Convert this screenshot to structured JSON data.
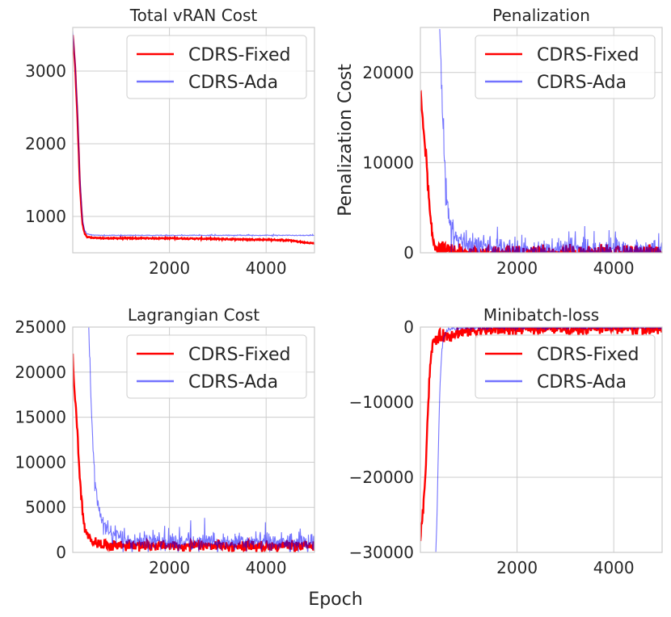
{
  "figure": {
    "xlabel": "Epoch"
  },
  "colors": {
    "fixed": "#ff0000",
    "ada": "#0000ff",
    "grid": "#cccccc",
    "text": "#262626"
  },
  "chart_data": [
    {
      "type": "line",
      "title": "Total vRAN Cost",
      "xlabel": "",
      "ylabel": "",
      "xlim": [
        0,
        5000
      ],
      "ylim": [
        500,
        3600
      ],
      "xticks": [
        2000,
        4000
      ],
      "xtick_labels": [
        "2000",
        "4000"
      ],
      "yticks": [
        1000,
        2000,
        3000
      ],
      "ytick_labels": [
        "1000",
        "2000",
        "3000"
      ],
      "legend_position": "top-right",
      "series": [
        {
          "name": "CDRS-Fixed",
          "key": "fixed",
          "x": [
            0,
            50,
            100,
            150,
            200,
            250,
            300,
            400,
            600,
            1000,
            2000,
            3000,
            4000,
            4500,
            4800,
            5000
          ],
          "y": [
            3500,
            3050,
            2300,
            1400,
            900,
            760,
            720,
            705,
            700,
            700,
            700,
            690,
            680,
            670,
            640,
            630
          ],
          "noise": 8
        },
        {
          "name": "CDRS-Ada",
          "key": "ada",
          "x": [
            0,
            50,
            100,
            150,
            200,
            250,
            300,
            400,
            600,
            1000,
            2000,
            3000,
            4000,
            5000
          ],
          "y": [
            3550,
            3100,
            2400,
            1500,
            950,
            800,
            760,
            745,
            740,
            740,
            740,
            740,
            740,
            740
          ],
          "noise": 4
        }
      ]
    },
    {
      "type": "line",
      "title": "Penalization",
      "xlabel": "",
      "ylabel": "Penalization Cost",
      "xlim": [
        0,
        5000
      ],
      "ylim": [
        0,
        25000
      ],
      "xticks": [
        2000,
        4000
      ],
      "xtick_labels": [
        "2000",
        "4000"
      ],
      "yticks": [
        0,
        10000,
        20000
      ],
      "ytick_labels": [
        "0",
        "10000",
        "20000"
      ],
      "legend_position": "top-right",
      "series": [
        {
          "name": "CDRS-Fixed",
          "key": "fixed",
          "x": [
            0,
            50,
            100,
            150,
            200,
            250,
            300,
            350,
            400,
            500,
            600,
            800,
            1000,
            2000,
            3000,
            4000,
            5000
          ],
          "y": [
            18000,
            14500,
            12000,
            8000,
            4000,
            1500,
            800,
            600,
            500,
            200,
            100,
            50,
            30,
            20,
            20,
            20,
            20
          ],
          "noise": 700
        },
        {
          "name": "CDRS-Ada",
          "key": "ada",
          "x": [
            400,
            430,
            460,
            500,
            550,
            600,
            700,
            800,
            1000,
            1200,
            1500,
            2000,
            3000,
            4000,
            5000
          ],
          "y": [
            25000,
            20000,
            15000,
            10000,
            6000,
            3500,
            2000,
            1500,
            1000,
            700,
            500,
            400,
            350,
            300,
            300
          ],
          "noise": 900
        }
      ]
    },
    {
      "type": "line",
      "title": "Lagrangian Cost",
      "xlabel": "",
      "ylabel": "",
      "xlim": [
        0,
        5000
      ],
      "ylim": [
        0,
        25000
      ],
      "xticks": [
        2000,
        4000
      ],
      "xtick_labels": [
        "2000",
        "4000"
      ],
      "yticks": [
        0,
        5000,
        10000,
        15000,
        20000,
        25000
      ],
      "ytick_labels": [
        "0",
        "5000",
        "10000",
        "15000",
        "20000",
        "25000"
      ],
      "legend_position": "top-right",
      "series": [
        {
          "name": "CDRS-Fixed",
          "key": "fixed",
          "x": [
            0,
            50,
            100,
            150,
            200,
            250,
            300,
            400,
            500,
            600,
            1000,
            2000,
            3000,
            4000,
            5000
          ],
          "y": [
            21500,
            17000,
            13000,
            8000,
            4500,
            2500,
            1700,
            1300,
            1100,
            900,
            800,
            700,
            700,
            700,
            700
          ],
          "noise": 500
        },
        {
          "name": "CDRS-Ada",
          "key": "ada",
          "x": [
            330,
            360,
            400,
            450,
            500,
            550,
            600,
            700,
            800,
            1000,
            1200,
            1500,
            2000,
            3000,
            4000,
            5000
          ],
          "y": [
            25000,
            20000,
            14000,
            9000,
            6500,
            4500,
            3500,
            2500,
            2000,
            1600,
            1400,
            1300,
            1200,
            1100,
            1100,
            1100
          ],
          "noise": 800
        }
      ]
    },
    {
      "type": "line",
      "title": "Minibatch-loss",
      "xlabel": "",
      "ylabel": "",
      "xlim": [
        0,
        5000
      ],
      "ylim": [
        -30000,
        0
      ],
      "xticks": [
        2000,
        4000
      ],
      "xtick_labels": [
        "2000",
        "4000"
      ],
      "yticks": [
        -30000,
        -20000,
        -10000,
        0
      ],
      "ytick_labels": [
        "−30000",
        "−20000",
        "−10000",
        "0"
      ],
      "legend_position": "top-right",
      "series": [
        {
          "name": "CDRS-Fixed",
          "key": "fixed",
          "x": [
            0,
            30,
            60,
            100,
            150,
            200,
            250,
            300,
            400,
            600,
            800,
            1000,
            1500,
            2000,
            3000,
            4000,
            5000
          ],
          "y": [
            -28000,
            -26000,
            -24000,
            -20000,
            -12000,
            -5000,
            -2500,
            -1600,
            -1300,
            -1000,
            -700,
            -500,
            -300,
            -200,
            -150,
            -120,
            -100
          ],
          "noise": 700
        },
        {
          "name": "CDRS-Ada",
          "key": "ada",
          "x": [
            320,
            340,
            360,
            380,
            400,
            420,
            440,
            470,
            500,
            550,
            600,
            800,
            1000,
            2000,
            3000,
            4000,
            5000
          ],
          "y": [
            -30000,
            -26000,
            -20000,
            -14000,
            -9000,
            -6000,
            -3500,
            -2000,
            -1000,
            -500,
            -300,
            -150,
            -100,
            -50,
            -50,
            -40,
            -40
          ],
          "noise": 150
        }
      ]
    }
  ]
}
